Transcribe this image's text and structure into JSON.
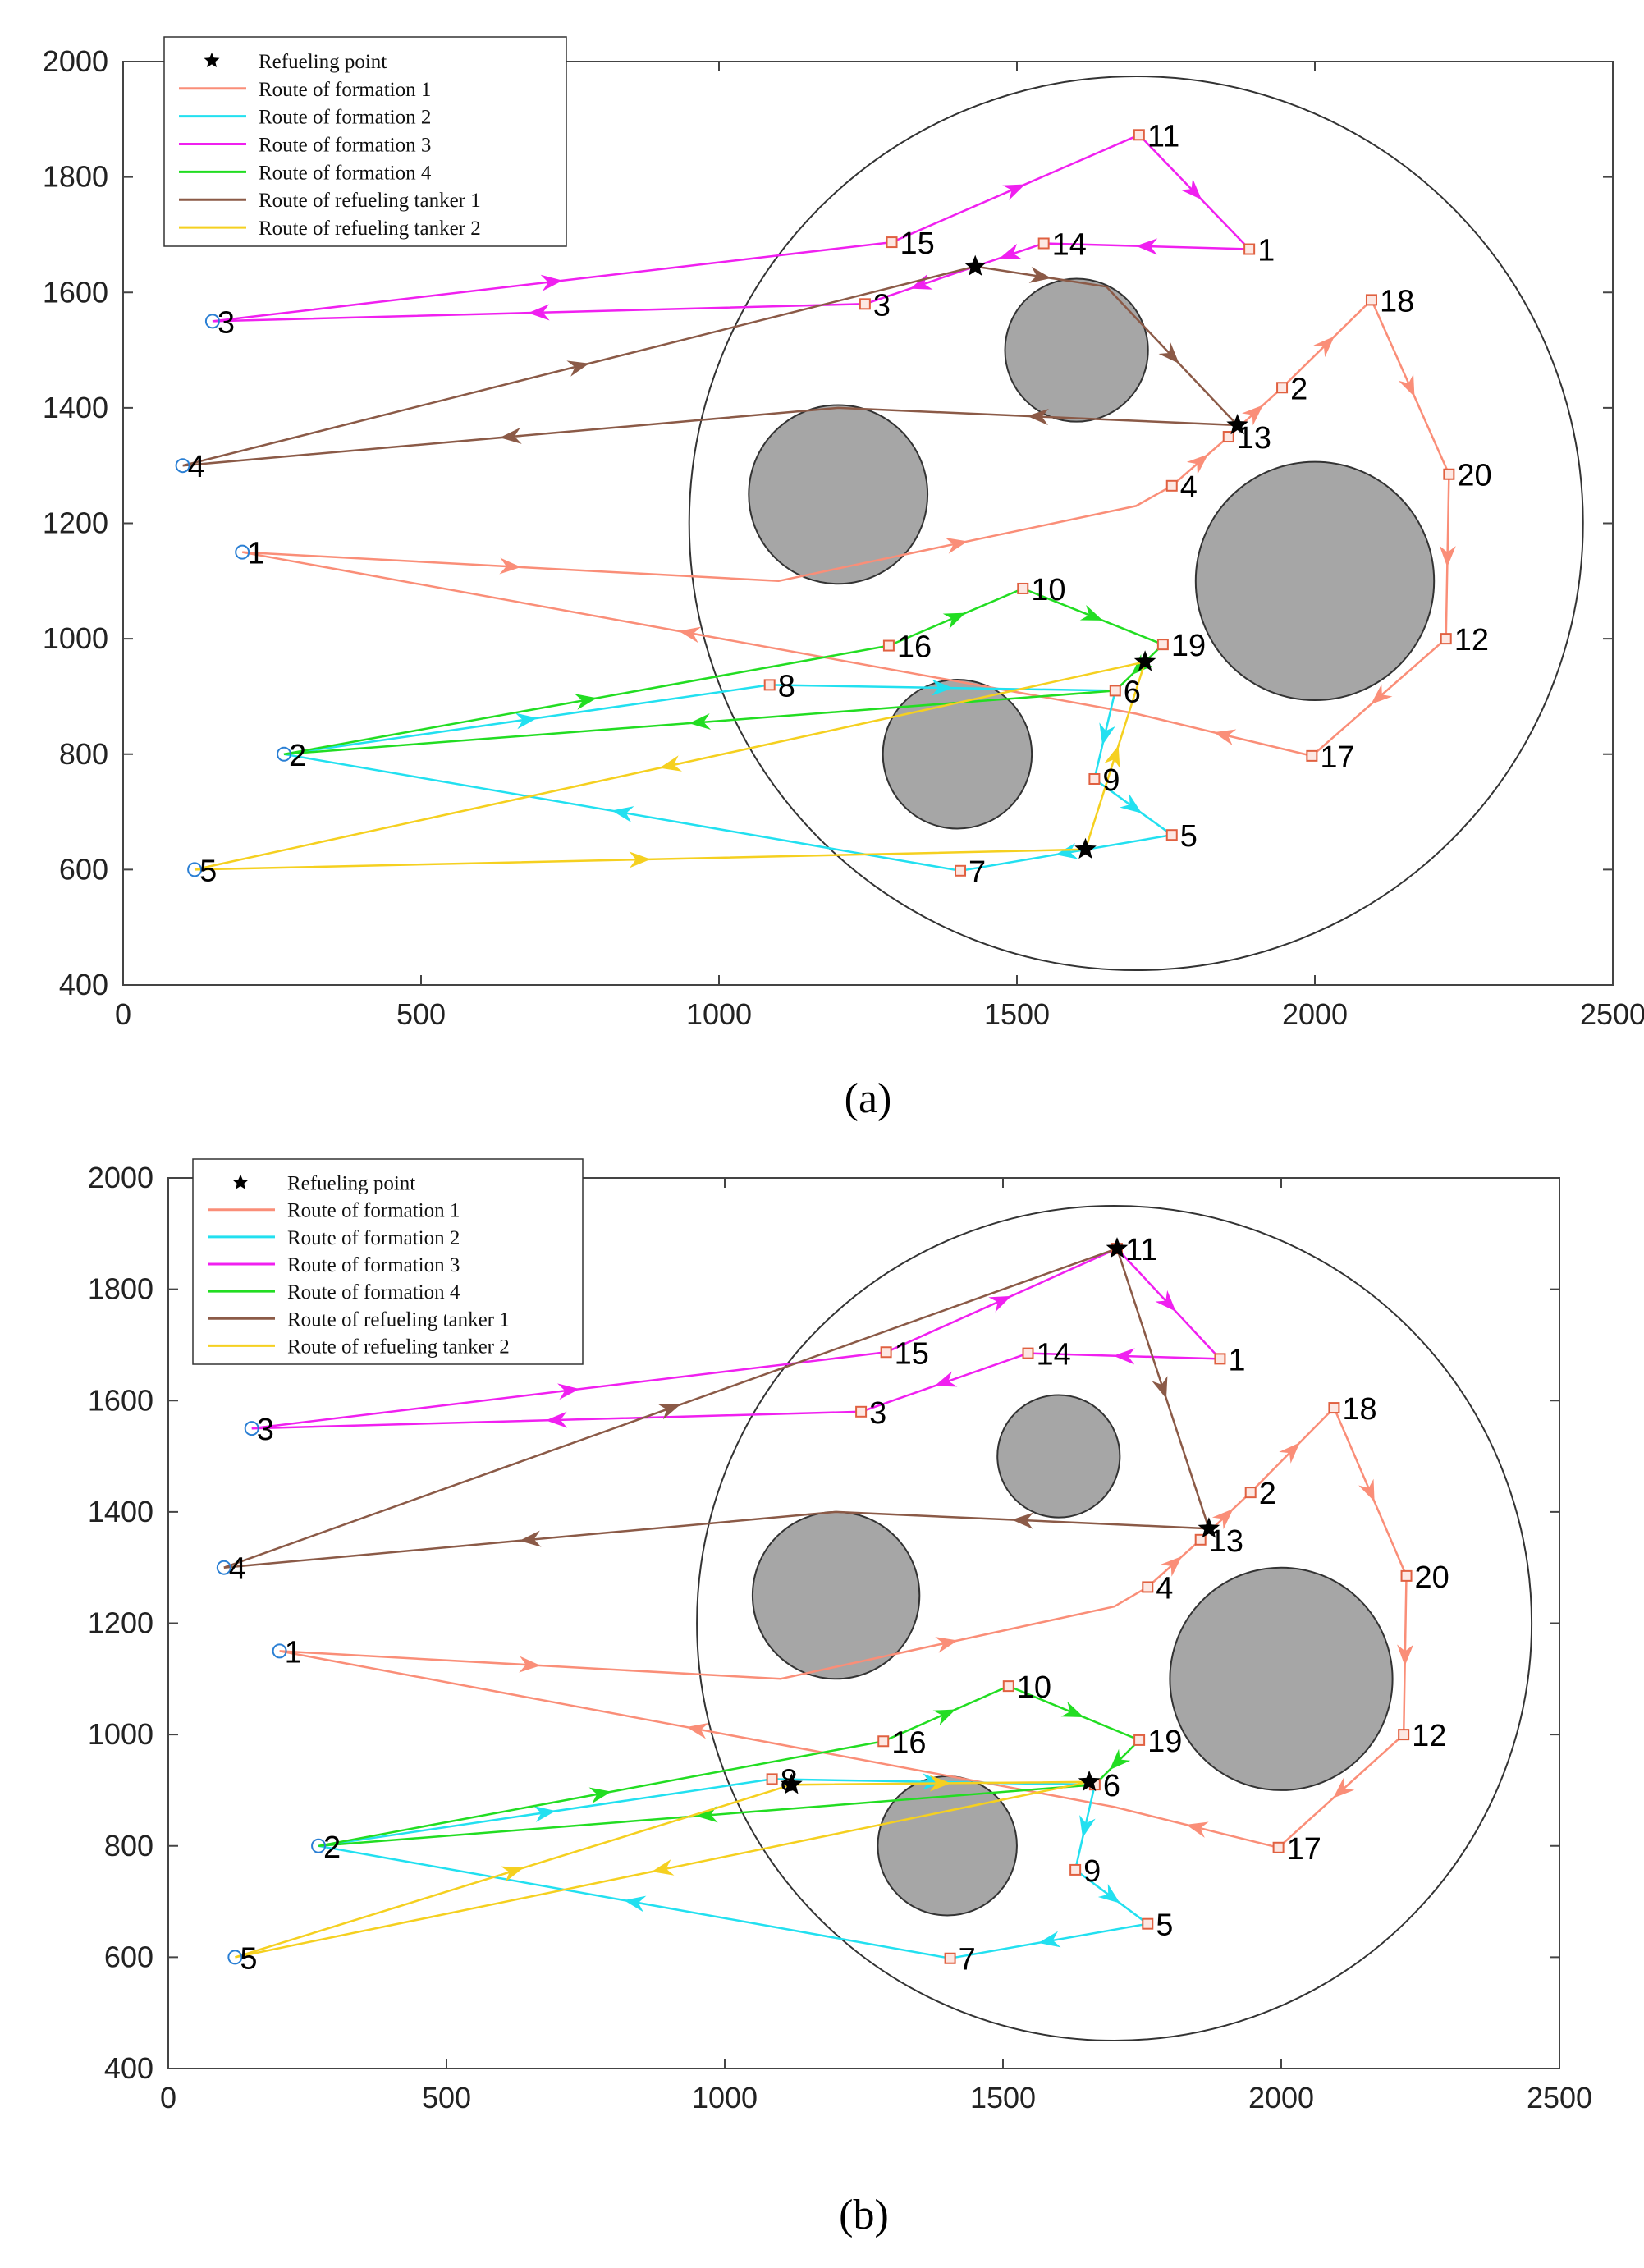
{
  "figure": {
    "x_ticks": [
      "0",
      "500",
      "1000",
      "1500",
      "2000",
      "2500"
    ],
    "y_ticks": [
      "400",
      "600",
      "800",
      "1000",
      "1200",
      "1400",
      "1600",
      "1800",
      "2000"
    ]
  },
  "legend": {
    "entries": [
      {
        "label": "Refueling point",
        "kind": "marker",
        "color": "#000000"
      },
      {
        "label": "Route of formation 1",
        "kind": "line",
        "color": "#FA8E78"
      },
      {
        "label": "Route of formation 2",
        "kind": "line",
        "color": "#22E0F0"
      },
      {
        "label": "Route of formation 3",
        "kind": "line",
        "color": "#F020F0"
      },
      {
        "label": "Route of formation 4",
        "kind": "line",
        "color": "#22DD22"
      },
      {
        "label": "Route of refueling tanker 1",
        "kind": "line",
        "color": "#8B5A47"
      },
      {
        "label": "Route of refueling tanker 2",
        "kind": "line",
        "color": "#F5D020"
      }
    ]
  },
  "chart_data": [
    {
      "type": "scatter",
      "title": "",
      "panel_label": "(a)",
      "xlim": [
        0,
        2500
      ],
      "ylim": [
        400,
        2000
      ],
      "mission_area": {
        "center": [
          1700,
          1200
        ],
        "radius": 750
      },
      "obstacles": [
        {
          "center": [
            1600,
            1500
          ],
          "radius": 120
        },
        {
          "center": [
            1200,
            1250
          ],
          "radius": 150
        },
        {
          "center": [
            2000,
            1100
          ],
          "radius": 200
        },
        {
          "center": [
            1400,
            800
          ],
          "radius": 125
        }
      ],
      "start_points": [
        {
          "label": "1",
          "x": 200,
          "y": 1150
        },
        {
          "label": "2",
          "x": 270,
          "y": 800
        },
        {
          "label": "3",
          "x": 150,
          "y": 1550
        },
        {
          "label": "4",
          "x": 100,
          "y": 1300
        },
        {
          "label": "5",
          "x": 120,
          "y": 600
        }
      ],
      "targets": [
        {
          "label": "1",
          "x": 1890,
          "y": 1675
        },
        {
          "label": "2",
          "x": 1945,
          "y": 1435
        },
        {
          "label": "3",
          "x": 1245,
          "y": 1580
        },
        {
          "label": "4",
          "x": 1760,
          "y": 1265
        },
        {
          "label": "5",
          "x": 1760,
          "y": 660
        },
        {
          "label": "6",
          "x": 1665,
          "y": 910
        },
        {
          "label": "7",
          "x": 1405,
          "y": 598
        },
        {
          "label": "8",
          "x": 1085,
          "y": 920
        },
        {
          "label": "9",
          "x": 1630,
          "y": 757
        },
        {
          "label": "10",
          "x": 1510,
          "y": 1087
        },
        {
          "label": "11",
          "x": 1705,
          "y": 1873
        },
        {
          "label": "12",
          "x": 2220,
          "y": 1000
        },
        {
          "label": "13",
          "x": 1855,
          "y": 1350
        },
        {
          "label": "14",
          "x": 1545,
          "y": 1685
        },
        {
          "label": "15",
          "x": 1290,
          "y": 1687
        },
        {
          "label": "16",
          "x": 1285,
          "y": 988
        },
        {
          "label": "17",
          "x": 1995,
          "y": 797
        },
        {
          "label": "18",
          "x": 2095,
          "y": 1587
        },
        {
          "label": "19",
          "x": 1745,
          "y": 990
        },
        {
          "label": "20",
          "x": 2225,
          "y": 1285
        }
      ],
      "refueling_points": [
        {
          "x": 1430,
          "y": 1645
        },
        {
          "x": 1870,
          "y": 1370
        },
        {
          "x": 1715,
          "y": 960
        },
        {
          "x": 1615,
          "y": 635
        }
      ],
      "series": [
        {
          "name": "Route of formation 1",
          "color": "#FA8E78",
          "points": [
            [
              200,
              1150
            ],
            [
              1100,
              1100
            ],
            [
              1700,
              1230
            ],
            [
              1760,
              1265
            ],
            [
              1855,
              1350
            ],
            [
              1945,
              1435
            ],
            [
              2095,
              1587
            ],
            [
              2225,
              1285
            ],
            [
              2220,
              1000
            ],
            [
              1995,
              797
            ],
            [
              1700,
              870
            ],
            [
              200,
              1150
            ]
          ]
        },
        {
          "name": "Route of formation 2",
          "color": "#22E0F0",
          "points": [
            [
              270,
              800
            ],
            [
              1085,
              920
            ],
            [
              1665,
              910
            ],
            [
              1630,
              757
            ],
            [
              1760,
              660
            ],
            [
              1405,
              598
            ],
            [
              270,
              800
            ]
          ]
        },
        {
          "name": "Route of formation 3",
          "color": "#F020F0",
          "points": [
            [
              150,
              1550
            ],
            [
              1290,
              1687
            ],
            [
              1705,
              1873
            ],
            [
              1890,
              1675
            ],
            [
              1545,
              1685
            ],
            [
              1430,
              1645
            ],
            [
              1245,
              1580
            ],
            [
              150,
              1550
            ]
          ]
        },
        {
          "name": "Route of formation 4",
          "color": "#22DD22",
          "points": [
            [
              270,
              800
            ],
            [
              1285,
              988
            ],
            [
              1510,
              1087
            ],
            [
              1745,
              990
            ],
            [
              1665,
              910
            ],
            [
              270,
              800
            ]
          ]
        },
        {
          "name": "Route of refueling tanker 1",
          "color": "#8B5A47",
          "points": [
            [
              100,
              1300
            ],
            [
              1430,
              1645
            ],
            [
              1650,
              1610
            ],
            [
              1870,
              1370
            ],
            [
              1200,
              1400
            ],
            [
              100,
              1300
            ]
          ]
        },
        {
          "name": "Route of refueling tanker 2",
          "color": "#F5D020",
          "points": [
            [
              120,
              600
            ],
            [
              1615,
              635
            ],
            [
              1715,
              960
            ],
            [
              120,
              600
            ]
          ]
        }
      ]
    },
    {
      "type": "scatter",
      "title": "",
      "panel_label": "(b)",
      "xlim": [
        0,
        2500
      ],
      "ylim": [
        400,
        2000
      ],
      "mission_area": {
        "center": [
          1700,
          1200
        ],
        "radius": 750
      },
      "obstacles": [
        {
          "center": [
            1600,
            1500
          ],
          "radius": 110
        },
        {
          "center": [
            1200,
            1250
          ],
          "radius": 150
        },
        {
          "center": [
            2000,
            1100
          ],
          "radius": 200
        },
        {
          "center": [
            1400,
            800
          ],
          "radius": 125
        }
      ],
      "start_points": [
        {
          "label": "1",
          "x": 200,
          "y": 1150
        },
        {
          "label": "2",
          "x": 270,
          "y": 800
        },
        {
          "label": "3",
          "x": 150,
          "y": 1550
        },
        {
          "label": "4",
          "x": 100,
          "y": 1300
        },
        {
          "label": "5",
          "x": 120,
          "y": 600
        }
      ],
      "targets": [
        {
          "label": "1",
          "x": 1890,
          "y": 1675
        },
        {
          "label": "2",
          "x": 1945,
          "y": 1435
        },
        {
          "label": "3",
          "x": 1245,
          "y": 1580
        },
        {
          "label": "4",
          "x": 1760,
          "y": 1265
        },
        {
          "label": "5",
          "x": 1760,
          "y": 660
        },
        {
          "label": "6",
          "x": 1665,
          "y": 910
        },
        {
          "label": "7",
          "x": 1405,
          "y": 598
        },
        {
          "label": "8",
          "x": 1085,
          "y": 920
        },
        {
          "label": "9",
          "x": 1630,
          "y": 757
        },
        {
          "label": "10",
          "x": 1510,
          "y": 1087
        },
        {
          "label": "11",
          "x": 1705,
          "y": 1873
        },
        {
          "label": "12",
          "x": 2220,
          "y": 1000
        },
        {
          "label": "13",
          "x": 1855,
          "y": 1350
        },
        {
          "label": "14",
          "x": 1545,
          "y": 1685
        },
        {
          "label": "15",
          "x": 1290,
          "y": 1687
        },
        {
          "label": "16",
          "x": 1285,
          "y": 988
        },
        {
          "label": "17",
          "x": 1995,
          "y": 797
        },
        {
          "label": "18",
          "x": 2095,
          "y": 1587
        },
        {
          "label": "19",
          "x": 1745,
          "y": 990
        },
        {
          "label": "20",
          "x": 2225,
          "y": 1285
        }
      ],
      "refueling_points": [
        {
          "x": 1705,
          "y": 1873
        },
        {
          "x": 1870,
          "y": 1370
        },
        {
          "x": 1120,
          "y": 910
        },
        {
          "x": 1655,
          "y": 915
        }
      ],
      "series": [
        {
          "name": "Route of formation 1",
          "color": "#FA8E78",
          "points": [
            [
              200,
              1150
            ],
            [
              1100,
              1100
            ],
            [
              1700,
              1230
            ],
            [
              1760,
              1265
            ],
            [
              1855,
              1350
            ],
            [
              1945,
              1435
            ],
            [
              2095,
              1587
            ],
            [
              2225,
              1285
            ],
            [
              2220,
              1000
            ],
            [
              1995,
              797
            ],
            [
              1700,
              870
            ],
            [
              200,
              1150
            ]
          ]
        },
        {
          "name": "Route of formation 2",
          "color": "#22E0F0",
          "points": [
            [
              270,
              800
            ],
            [
              1085,
              920
            ],
            [
              1665,
              910
            ],
            [
              1630,
              757
            ],
            [
              1760,
              660
            ],
            [
              1405,
              598
            ],
            [
              270,
              800
            ]
          ]
        },
        {
          "name": "Route of formation 3",
          "color": "#F020F0",
          "points": [
            [
              150,
              1550
            ],
            [
              1290,
              1687
            ],
            [
              1705,
              1873
            ],
            [
              1890,
              1675
            ],
            [
              1545,
              1685
            ],
            [
              1245,
              1580
            ],
            [
              150,
              1550
            ]
          ]
        },
        {
          "name": "Route of formation 4",
          "color": "#22DD22",
          "points": [
            [
              270,
              800
            ],
            [
              1285,
              988
            ],
            [
              1510,
              1087
            ],
            [
              1745,
              990
            ],
            [
              1665,
              910
            ],
            [
              270,
              800
            ]
          ]
        },
        {
          "name": "Route of refueling tanker 1",
          "color": "#8B5A47",
          "points": [
            [
              100,
              1300
            ],
            [
              1705,
              1873
            ],
            [
              1870,
              1370
            ],
            [
              1200,
              1400
            ],
            [
              100,
              1300
            ]
          ]
        },
        {
          "name": "Route of refueling tanker 2",
          "color": "#F5D020",
          "points": [
            [
              120,
              600
            ],
            [
              1120,
              910
            ],
            [
              1655,
              915
            ],
            [
              120,
              600
            ]
          ]
        }
      ]
    }
  ]
}
